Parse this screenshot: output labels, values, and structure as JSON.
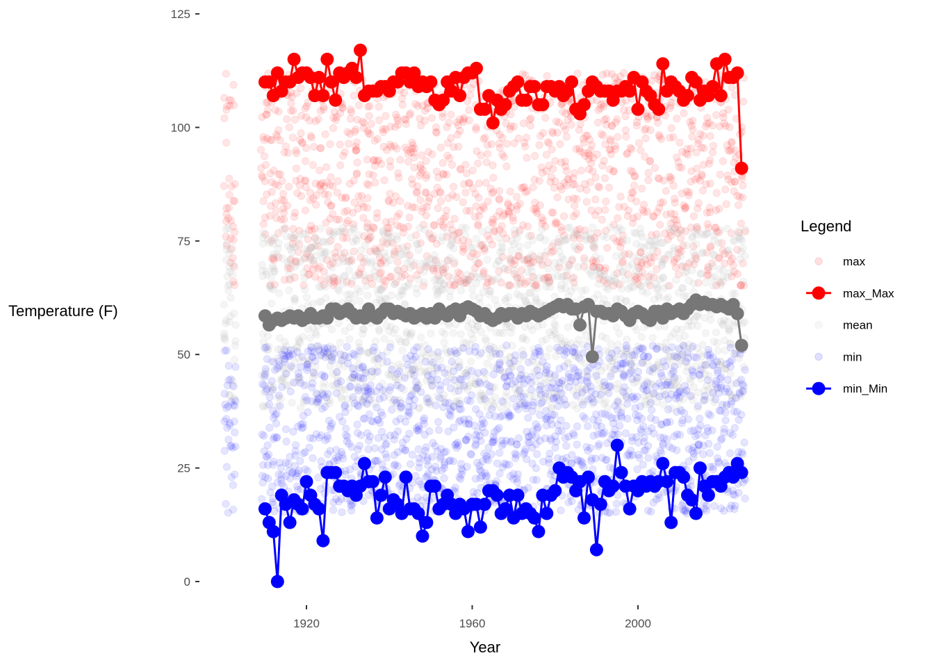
{
  "chart_data": {
    "type": "scatter",
    "xlabel": "Year",
    "ylabel": "Temperature (F)",
    "xlim": [
      1897,
      2027
    ],
    "ylim": [
      -5,
      125
    ],
    "x_ticks": [
      1920,
      1960,
      2000
    ],
    "y_ticks": [
      0,
      25,
      50,
      75,
      100,
      125
    ],
    "grid": false,
    "legend": {
      "title": "Legend",
      "placement": "right",
      "entries": [
        {
          "name": "max",
          "style": "point",
          "color": "#ff0000"
        },
        {
          "name": "max_Max",
          "style": "line+point",
          "color": "#ff0000"
        },
        {
          "name": "mean",
          "style": "point",
          "color": "#bebebe"
        },
        {
          "name": "min",
          "style": "point",
          "color": "#0000ff"
        },
        {
          "name": "min_Min",
          "style": "line+point",
          "color": "#0000ff"
        }
      ]
    },
    "series": [
      {
        "name": "max_Max",
        "color": "#ff0000",
        "x": [
          1910,
          1911,
          1912,
          1913,
          1914,
          1915,
          1916,
          1917,
          1918,
          1919,
          1920,
          1921,
          1922,
          1923,
          1924,
          1925,
          1926,
          1927,
          1928,
          1929,
          1930,
          1931,
          1932,
          1933,
          1934,
          1935,
          1936,
          1937,
          1938,
          1939,
          1940,
          1941,
          1942,
          1943,
          1944,
          1945,
          1946,
          1947,
          1948,
          1949,
          1950,
          1951,
          1952,
          1953,
          1954,
          1955,
          1956,
          1957,
          1958,
          1959,
          1960,
          1961,
          1962,
          1963,
          1964,
          1965,
          1966,
          1967,
          1968,
          1969,
          1970,
          1971,
          1972,
          1973,
          1974,
          1975,
          1976,
          1977,
          1978,
          1979,
          1980,
          1981,
          1982,
          1983,
          1984,
          1985,
          1986,
          1987,
          1988,
          1989,
          1990,
          1991,
          1992,
          1993,
          1994,
          1995,
          1996,
          1997,
          1998,
          1999,
          2000,
          2001,
          2002,
          2003,
          2004,
          2005,
          2006,
          2007,
          2008,
          2009,
          2010,
          2011,
          2012,
          2013,
          2014,
          2015,
          2016,
          2017,
          2018,
          2019,
          2020,
          2021,
          2022,
          2023,
          2024,
          2025
        ],
        "y": [
          110,
          110,
          107,
          112,
          108,
          110,
          110,
          115,
          111,
          112,
          112,
          111,
          107,
          111,
          107,
          115,
          110,
          106,
          112,
          111,
          112,
          113,
          111,
          117,
          107,
          108,
          108,
          108,
          109,
          109,
          108,
          110,
          110,
          112,
          112,
          110,
          112,
          109,
          110,
          109,
          110,
          106,
          105,
          106,
          110,
          108,
          111,
          107,
          111,
          112,
          112,
          113,
          104,
          104,
          107,
          101,
          106,
          104,
          105,
          108,
          109,
          110,
          106,
          106,
          109,
          109,
          105,
          105,
          109,
          109,
          108,
          109,
          107,
          108,
          110,
          104,
          103,
          105,
          108,
          110,
          109,
          108,
          108,
          108,
          106,
          108,
          108,
          109,
          108,
          111,
          104,
          110,
          108,
          107,
          105,
          104,
          114,
          108,
          110,
          109,
          108,
          106,
          107,
          111,
          110,
          106,
          108,
          107,
          109,
          114,
          107,
          115,
          111,
          111,
          112,
          91
        ]
      },
      {
        "name": "mean",
        "color": "#777777",
        "x": [
          1910,
          1911,
          1912,
          1913,
          1914,
          1915,
          1916,
          1917,
          1918,
          1919,
          1920,
          1921,
          1922,
          1923,
          1924,
          1925,
          1926,
          1927,
          1928,
          1929,
          1930,
          1931,
          1932,
          1933,
          1934,
          1935,
          1936,
          1937,
          1938,
          1939,
          1940,
          1941,
          1942,
          1943,
          1944,
          1945,
          1946,
          1947,
          1948,
          1949,
          1950,
          1951,
          1952,
          1953,
          1954,
          1955,
          1956,
          1957,
          1958,
          1959,
          1960,
          1961,
          1962,
          1963,
          1964,
          1965,
          1966,
          1967,
          1968,
          1969,
          1970,
          1971,
          1972,
          1973,
          1974,
          1975,
          1976,
          1977,
          1978,
          1979,
          1980,
          1981,
          1982,
          1983,
          1984,
          1985,
          1986,
          1987,
          1988,
          1989,
          1990,
          1991,
          1992,
          1993,
          1994,
          1995,
          1996,
          1997,
          1998,
          1999,
          2000,
          2001,
          2002,
          2003,
          2004,
          2005,
          2006,
          2007,
          2008,
          2009,
          2010,
          2011,
          2012,
          2013,
          2014,
          2015,
          2016,
          2017,
          2018,
          2019,
          2020,
          2021,
          2022,
          2023,
          2024,
          2025
        ],
        "y": [
          58.5,
          56.5,
          57.5,
          58,
          57.5,
          58,
          58.5,
          58,
          58.5,
          57.5,
          58,
          59,
          58,
          58,
          58.5,
          58,
          60,
          60,
          59,
          59.5,
          60,
          59,
          58,
          58.5,
          58,
          60,
          58.5,
          58,
          59,
          60,
          60,
          59,
          59.5,
          59,
          58.5,
          59,
          58,
          58.5,
          59,
          58,
          59,
          58,
          60,
          59,
          58.5,
          59.5,
          60,
          58.5,
          60,
          60.5,
          60,
          59.5,
          58.5,
          59,
          58,
          57.5,
          58,
          59,
          58.5,
          59,
          59,
          58,
          59,
          58.5,
          59.5,
          59,
          58.5,
          59,
          59.5,
          60,
          60.5,
          61,
          60.5,
          61,
          60,
          60,
          56.5,
          60.5,
          61,
          49.5,
          59.5,
          59.5,
          59,
          59,
          58.5,
          60,
          59.5,
          58.5,
          57.5,
          59,
          59.5,
          59,
          58,
          57.5,
          59.5,
          59.5,
          58,
          60,
          59,
          59.5,
          60,
          59,
          60,
          61,
          62,
          61,
          61.5,
          61,
          61,
          60.5,
          61,
          60.5,
          60,
          61,
          59,
          52
        ]
      },
      {
        "name": "min_Min",
        "color": "#0000ff",
        "x": [
          1910,
          1911,
          1912,
          1913,
          1914,
          1915,
          1916,
          1917,
          1918,
          1919,
          1920,
          1921,
          1922,
          1923,
          1924,
          1925,
          1926,
          1927,
          1928,
          1929,
          1930,
          1931,
          1932,
          1933,
          1934,
          1935,
          1936,
          1937,
          1938,
          1939,
          1940,
          1941,
          1942,
          1943,
          1944,
          1945,
          1946,
          1947,
          1948,
          1949,
          1950,
          1951,
          1952,
          1953,
          1954,
          1955,
          1956,
          1957,
          1958,
          1959,
          1960,
          1961,
          1962,
          1963,
          1964,
          1965,
          1966,
          1967,
          1968,
          1969,
          1970,
          1971,
          1972,
          1973,
          1974,
          1975,
          1976,
          1977,
          1978,
          1979,
          1980,
          1981,
          1982,
          1983,
          1984,
          1985,
          1986,
          1987,
          1988,
          1989,
          1990,
          1991,
          1992,
          1993,
          1994,
          1995,
          1996,
          1997,
          1998,
          1999,
          2000,
          2001,
          2002,
          2003,
          2004,
          2005,
          2006,
          2007,
          2008,
          2009,
          2010,
          2011,
          2012,
          2013,
          2014,
          2015,
          2016,
          2017,
          2018,
          2019,
          2020,
          2021,
          2022,
          2023,
          2024,
          2025
        ],
        "y": [
          16,
          13,
          11,
          0,
          19,
          17,
          13,
          18,
          17,
          16,
          22,
          19,
          17,
          16,
          9,
          24,
          24,
          24,
          21,
          21,
          20,
          21,
          19,
          21,
          26,
          22,
          22,
          14,
          19,
          23,
          16,
          18,
          17,
          15,
          23,
          16,
          16,
          15,
          10,
          13,
          21,
          21,
          16,
          17,
          19,
          17,
          15,
          17,
          16,
          11,
          17,
          17,
          12,
          17,
          20,
          20,
          19,
          15,
          16,
          19,
          14,
          19,
          15,
          16,
          15,
          14,
          11,
          19,
          15,
          19,
          20,
          25,
          23,
          24,
          23,
          20,
          22,
          14,
          23,
          18,
          7,
          17,
          22,
          20,
          21,
          30,
          24,
          21,
          16,
          21,
          20,
          22,
          21,
          22,
          21,
          22,
          26,
          22,
          13,
          24,
          24,
          23,
          19,
          18,
          15,
          25,
          21,
          19,
          22,
          22,
          21,
          23,
          24,
          23,
          26,
          24
        ]
      }
    ],
    "scatter_series": [
      {
        "name": "max",
        "color": "#ff0000",
        "alpha": 0.1,
        "y_range": [
          65,
          112
        ]
      },
      {
        "name": "mean",
        "color": "#bebebe",
        "alpha": 0.15,
        "y_range": [
          38,
          78
        ]
      },
      {
        "name": "min",
        "color": "#0000ff",
        "alpha": 0.1,
        "y_range": [
          15,
          52
        ]
      }
    ]
  }
}
